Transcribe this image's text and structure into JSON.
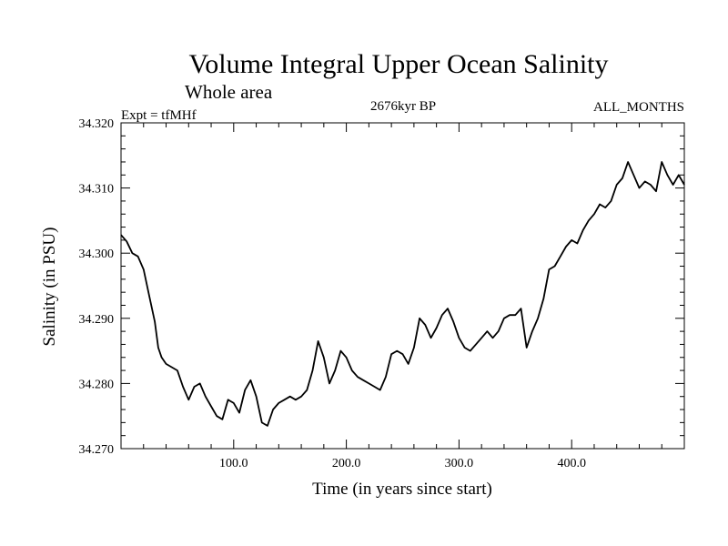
{
  "chart_data": {
    "type": "line",
    "title": "Volume Integral Upper Ocean Salinity",
    "subtitle": "Whole area",
    "experiment_label": "Expt = tfMHf",
    "period_label": "2676kyr BP",
    "months_label": "ALL_MONTHS",
    "xlabel": "Time (in years since start)",
    "ylabel": "Salinity (in PSU)",
    "xlim": [
      0,
      500
    ],
    "ylim": [
      34.27,
      34.32
    ],
    "x_ticks": [
      100,
      200,
      300,
      400
    ],
    "x_tick_labels": [
      "100.0",
      "200.0",
      "300.0",
      "400.0"
    ],
    "y_ticks": [
      34.27,
      34.28,
      34.29,
      34.3,
      34.31,
      34.32
    ],
    "y_tick_labels": [
      "34.270",
      "34.280",
      "34.290",
      "34.300",
      "34.310",
      "34.320"
    ],
    "series": [
      {
        "name": "salinity",
        "color": "#000000",
        "x": [
          0,
          5,
          10,
          15,
          20,
          25,
          30,
          33,
          36,
          40,
          45,
          50,
          55,
          60,
          65,
          70,
          75,
          80,
          85,
          90,
          95,
          100,
          105,
          110,
          115,
          120,
          125,
          130,
          135,
          140,
          145,
          150,
          155,
          160,
          165,
          170,
          175,
          180,
          185,
          190,
          195,
          200,
          205,
          210,
          215,
          220,
          225,
          230,
          235,
          240,
          245,
          250,
          255,
          260,
          265,
          270,
          275,
          280,
          285,
          290,
          295,
          300,
          305,
          310,
          315,
          320,
          325,
          330,
          335,
          340,
          345,
          350,
          355,
          360,
          365,
          370,
          375,
          380,
          385,
          390,
          395,
          400,
          405,
          410,
          415,
          420,
          425,
          430,
          435,
          440,
          445,
          450,
          455,
          460,
          465,
          470,
          475,
          480,
          485,
          490,
          495,
          500
        ],
        "values": [
          34.3028,
          34.3018,
          34.3,
          34.2995,
          34.2975,
          34.2935,
          34.2895,
          34.2855,
          34.284,
          34.283,
          34.2825,
          34.282,
          34.2795,
          34.2775,
          34.2795,
          34.28,
          34.278,
          34.2765,
          34.275,
          34.2745,
          34.2775,
          34.277,
          34.2755,
          34.279,
          34.2805,
          34.278,
          34.274,
          34.2735,
          34.276,
          34.277,
          34.2775,
          34.278,
          34.2775,
          34.278,
          34.279,
          34.282,
          34.2865,
          34.284,
          34.28,
          34.282,
          34.285,
          34.284,
          34.282,
          34.281,
          34.2805,
          34.28,
          34.2795,
          34.279,
          34.281,
          34.2845,
          34.285,
          34.2845,
          34.283,
          34.2855,
          34.29,
          34.289,
          34.287,
          34.2885,
          34.2905,
          34.2915,
          34.2895,
          34.287,
          34.2855,
          34.285,
          34.286,
          34.287,
          34.288,
          34.287,
          34.288,
          34.29,
          34.2905,
          34.2905,
          34.2915,
          34.2855,
          34.288,
          34.29,
          34.293,
          34.2975,
          34.298,
          34.2995,
          34.301,
          34.302,
          34.3015,
          34.3035,
          34.305,
          34.306,
          34.3075,
          34.307,
          34.308,
          34.3105,
          34.3115,
          34.314,
          34.312,
          34.31,
          34.311,
          34.3105,
          34.3095,
          34.314,
          34.312,
          34.3105,
          34.312,
          34.3105
        ]
      }
    ]
  }
}
